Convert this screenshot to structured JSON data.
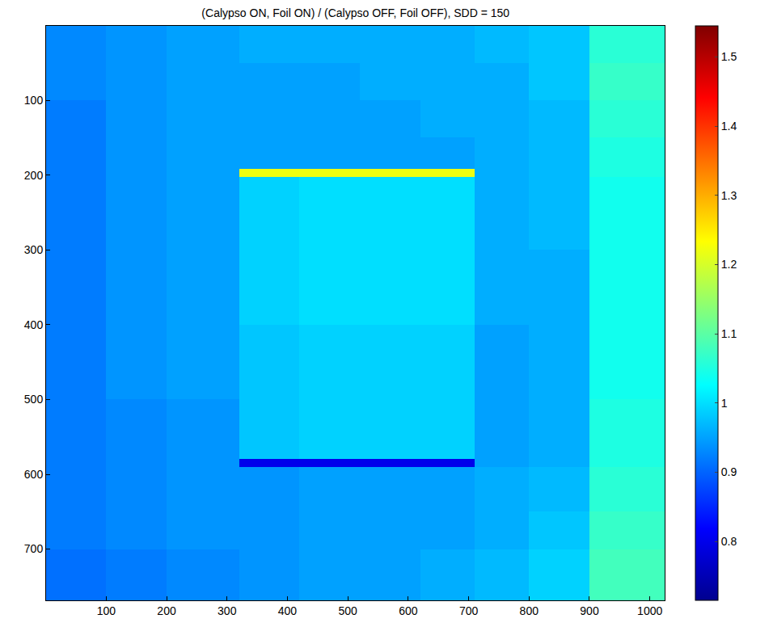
{
  "chart_data": {
    "type": "heatmap",
    "title": "(Calypso ON, Foil ON) / (Calypso OFF, Foil OFF), SDD = 150",
    "x_edges": [
      0.5,
      100,
      200,
      320,
      420,
      520,
      620,
      710,
      800,
      900,
      1024.5
    ],
    "y_edges": [
      0.5,
      50,
      100,
      150,
      192,
      202,
      300,
      400,
      500,
      580,
      590,
      650,
      700,
      768.5
    ],
    "cells": [
      [
        0.93,
        0.94,
        0.95,
        0.96,
        0.96,
        0.96,
        0.96,
        0.97,
        0.98,
        1.06
      ],
      [
        0.93,
        0.94,
        0.95,
        0.95,
        0.95,
        0.96,
        0.96,
        0.96,
        0.98,
        1.07
      ],
      [
        0.92,
        0.94,
        0.95,
        0.95,
        0.95,
        0.95,
        0.96,
        0.96,
        0.97,
        1.06
      ],
      [
        0.92,
        0.94,
        0.95,
        0.95,
        0.95,
        0.95,
        0.95,
        0.96,
        0.97,
        1.05
      ],
      [
        0.92,
        0.94,
        0.95,
        1.22,
        1.22,
        1.22,
        1.22,
        0.96,
        0.97,
        1.05
      ],
      [
        0.92,
        0.94,
        0.95,
        0.99,
        1.0,
        1.0,
        1.0,
        0.96,
        0.97,
        1.04
      ],
      [
        0.92,
        0.94,
        0.95,
        0.99,
        1.0,
        1.0,
        1.0,
        0.96,
        0.96,
        1.04
      ],
      [
        0.92,
        0.94,
        0.95,
        0.98,
        0.99,
        0.99,
        0.99,
        0.95,
        0.96,
        1.04
      ],
      [
        0.92,
        0.93,
        0.94,
        0.98,
        0.99,
        0.99,
        0.99,
        0.95,
        0.96,
        1.05
      ],
      [
        0.92,
        0.93,
        0.94,
        0.8,
        0.8,
        0.8,
        0.8,
        0.95,
        0.96,
        1.05
      ],
      [
        0.92,
        0.93,
        0.94,
        0.94,
        0.95,
        0.95,
        0.95,
        0.96,
        0.97,
        1.06
      ],
      [
        0.92,
        0.93,
        0.94,
        0.94,
        0.95,
        0.95,
        0.95,
        0.96,
        0.98,
        1.07
      ],
      [
        0.91,
        0.92,
        0.93,
        0.94,
        0.95,
        0.95,
        0.96,
        0.97,
        0.99,
        1.08
      ]
    ],
    "xlim": [
      0.5,
      1024.5
    ],
    "ylim": [
      768.5,
      0.5
    ],
    "xticks": [
      100,
      200,
      300,
      400,
      500,
      600,
      700,
      800,
      900,
      1000
    ],
    "yticks": [
      100,
      200,
      300,
      400,
      500,
      600,
      700
    ],
    "color_range": [
      0.715,
      1.545
    ],
    "color_ticks": [
      0.8,
      0.9,
      1,
      1.1,
      1.2,
      1.3,
      1.4,
      1.5
    ]
  }
}
